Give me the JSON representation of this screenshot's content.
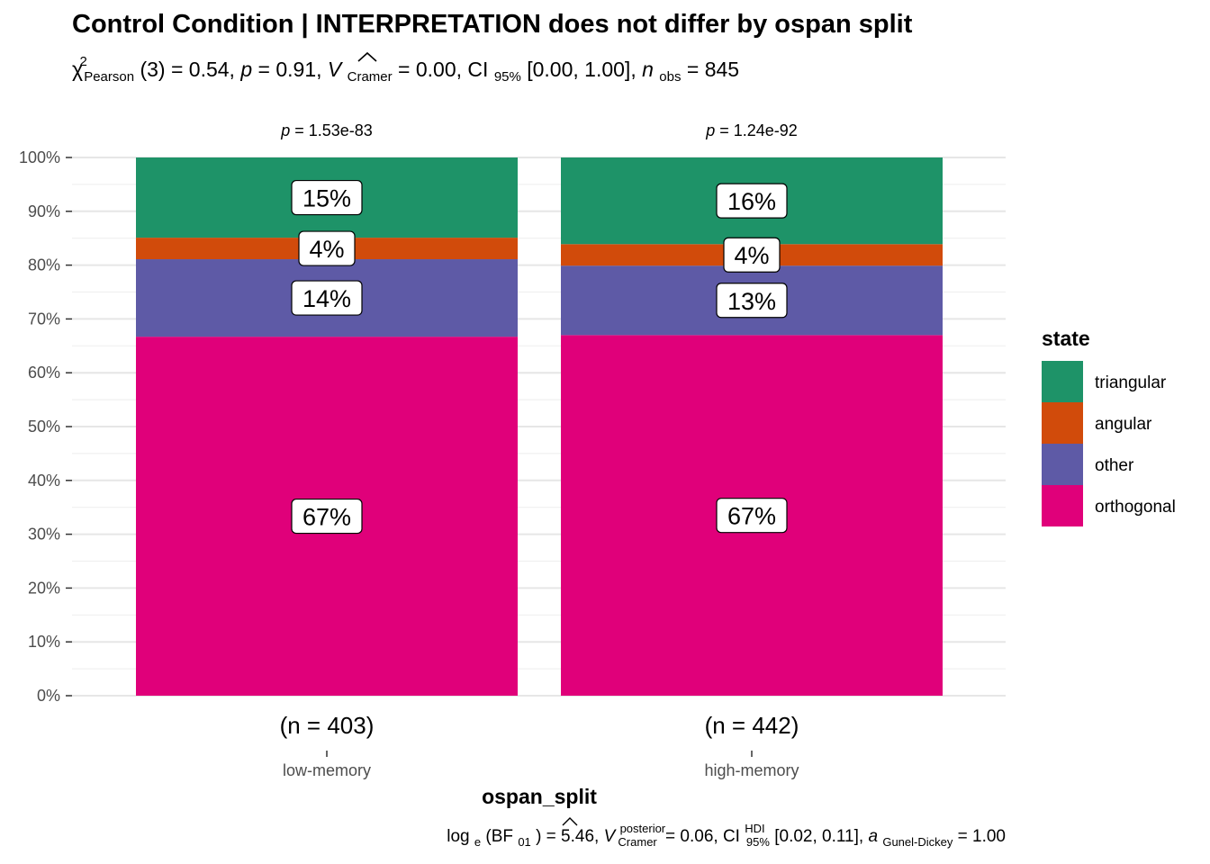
{
  "chart_data": {
    "type": "bar",
    "title": "Control Condition | INTERPRETATION does not differ by ospan split",
    "subtitle": {
      "chi": "χ",
      "chi_sup": "2",
      "chi_sub": "Pearson",
      "df_p": "(3) = 0.54, ",
      "p_label": "p",
      "p_rest": " = 0.91, ",
      "v_label": "V",
      "v_sub": "Cramer",
      "v_rest": " = 0.00, CI",
      "ci_sub": "95%",
      "ci_rest": " [0.00, 1.00], ",
      "n_label": "n",
      "n_sub": "obs",
      "n_rest": " = 845"
    },
    "xlabel": "ospan_split",
    "ylabel": "",
    "ylim": [
      0,
      100
    ],
    "y_ticks": [
      "0%",
      "10%",
      "20%",
      "30%",
      "40%",
      "50%",
      "60%",
      "70%",
      "80%",
      "90%",
      "100%"
    ],
    "categories": [
      "low-memory",
      "high-memory"
    ],
    "counts": [
      "(n = 403)",
      "(n = 442)"
    ],
    "facet_p": [
      {
        "p": "p",
        "rest": " = 1.53e-83"
      },
      {
        "p": "p",
        "rest": " = 1.24e-92"
      }
    ],
    "series": [
      {
        "name": "orthogonal",
        "color": "#E7298A",
        "fill": "#E0007A",
        "values": [
          66.7,
          67.0
        ],
        "labels": [
          "67%",
          "67%"
        ]
      },
      {
        "name": "other",
        "color": "#5E5AA6",
        "values": [
          14.4,
          12.9
        ],
        "labels": [
          "14%",
          "13%"
        ]
      },
      {
        "name": "angular",
        "color": "#D14B0B",
        "values": [
          4.0,
          4.0
        ],
        "labels": [
          "4%",
          "4%"
        ]
      },
      {
        "name": "triangular",
        "color": "#1E9368",
        "values": [
          14.9,
          16.1
        ],
        "labels": [
          "15%",
          "16%"
        ]
      }
    ],
    "legend": {
      "title": "state",
      "position": "right",
      "items": [
        "triangular",
        "angular",
        "other",
        "orthogonal"
      ]
    },
    "caption": {
      "log": "log",
      "log_sub": "e",
      "bf": "(BF",
      "bf_sub": "01",
      "bf_rest": ") = 5.46, ",
      "v_label": "V",
      "v_sup": "posterior",
      "v_sub": "Cramer",
      "v_rest": " = 0.06, CI",
      "ci_sup": "HDI",
      "ci_sub": "95%",
      "ci_rest": " [0.02, 0.11], ",
      "a_label": "a",
      "a_sub": "Gunel-Dickey",
      "a_rest": " = 1.00"
    },
    "grid": true
  }
}
